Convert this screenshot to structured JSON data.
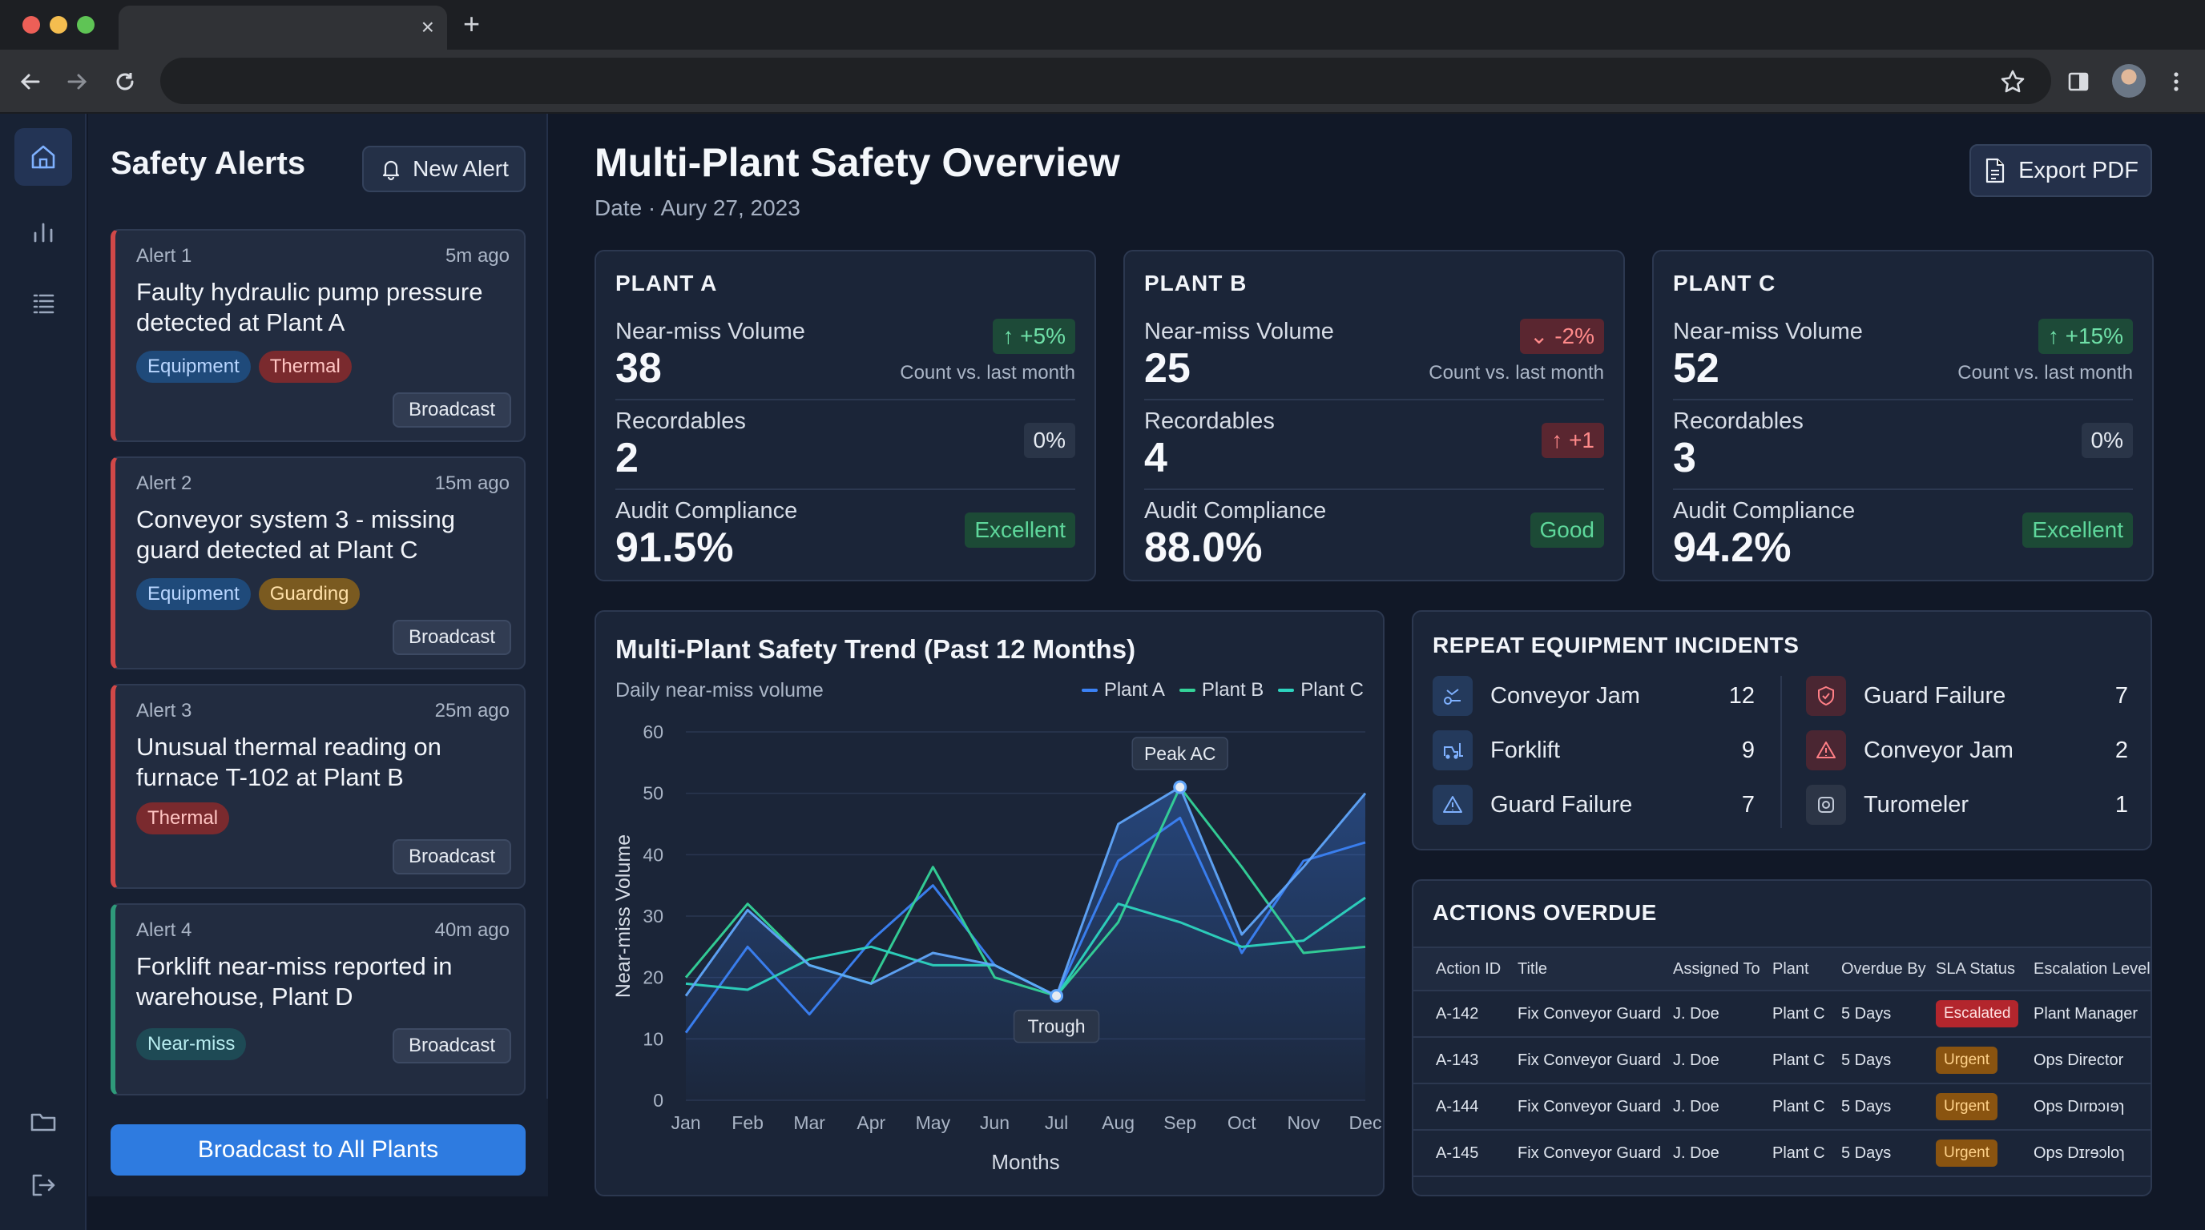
{
  "browser": {
    "tab_close": "×",
    "new_tab": "+"
  },
  "alerts_panel": {
    "title": "Safety Alerts",
    "new_alert_label": "New Alert",
    "broadcast_all_label": "Broadcast to All Plants",
    "alerts": [
      {
        "num": "Alert 1",
        "time": "5m ago",
        "text": "Faulty hydraulic pump pressure detected at Plant A",
        "tags": [
          "Equipment",
          "Thermal"
        ],
        "action": "Broadcast"
      },
      {
        "num": "Alert 2",
        "time": "15m ago",
        "text": "Conveyor system 3 - missing guard detected at Plant C",
        "tags": [
          "Equipment",
          "Guarding"
        ],
        "action": "Broadcast"
      },
      {
        "num": "Alert 3",
        "time": "25m ago",
        "text": "Unusual thermal reading on furnace T-102 at Plant B",
        "tags": [
          "Thermal"
        ],
        "action": "Broadcast"
      },
      {
        "num": "Alert 4",
        "time": "40m ago",
        "text": "Forklift near-miss reported in warehouse, Plant D",
        "tags": [
          "Near-miss"
        ],
        "action": "Broadcast"
      }
    ]
  },
  "header": {
    "title": "Multi-Plant Safety Overview",
    "date": "Date · Aury 27, 2023",
    "export_label": "Export PDF"
  },
  "plants": [
    {
      "name": "PLANT A",
      "near_miss_label": "Near-miss Volume",
      "near_miss": "38",
      "near_miss_delta": "+5%",
      "note": "Count vs. last month",
      "recordables_label": "Recordables",
      "recordables": "2",
      "recordables_delta": "0%",
      "audit_label": "Audit Compliance",
      "audit": "91.5%",
      "audit_status": "Excellent"
    },
    {
      "name": "PLANT B",
      "near_miss_label": "Near-miss Volume",
      "near_miss": "25",
      "near_miss_delta": "-2%",
      "note": "Count vs. last month",
      "recordables_label": "Recordables",
      "recordables": "4",
      "recordables_delta": "+1",
      "audit_label": "Audit Compliance",
      "audit": "88.0%",
      "audit_status": "Good"
    },
    {
      "name": "PLANT C",
      "near_miss_label": "Near-miss Volume",
      "near_miss": "52",
      "near_miss_delta": "+15%",
      "note": "Count vs. last month",
      "recordables_label": "Recordables",
      "recordables": "3",
      "recordables_delta": "0%",
      "audit_label": "Audit Compliance",
      "audit": "94.2%",
      "audit_status": "Excellent"
    }
  ],
  "chart_data": {
    "type": "line",
    "title": "Multi-Plant Safety Trend (Past 12 Months)",
    "subtitle": "Daily near-miss volume",
    "xlabel": "Months",
    "ylabel": "Near-miss Volume",
    "categories": [
      "Jan",
      "Feb",
      "Mar",
      "Apr",
      "May",
      "Jun",
      "Jul",
      "Aug",
      "Sep",
      "Oct",
      "Nov",
      "Dec"
    ],
    "ylim": [
      0,
      60
    ],
    "yticks": [
      0,
      10,
      20,
      30,
      40,
      50,
      60
    ],
    "grid": true,
    "legend_position": "top-right",
    "series": [
      {
        "name": "Plant A",
        "color": "#3b82f6",
        "values": [
          11,
          25,
          14,
          26,
          35,
          22,
          17,
          39,
          46,
          24,
          39,
          42
        ]
      },
      {
        "name": "Plant B",
        "color": "#34d399",
        "values": [
          20,
          32,
          22,
          19,
          38,
          20,
          17,
          29,
          51,
          38,
          24,
          25
        ]
      },
      {
        "name": "Plant C",
        "color": "#2dd4bf",
        "values": [
          19,
          18,
          23,
          25,
          22,
          22,
          17,
          32,
          29,
          25,
          26,
          33
        ]
      },
      {
        "name": "Peak",
        "color": "#60a5fa",
        "values": [
          17,
          31,
          22,
          19,
          24,
          22,
          17,
          45,
          51,
          27,
          38,
          50
        ]
      }
    ],
    "annotations": [
      {
        "label": "Peak AC",
        "x": "Sep",
        "y": 51
      },
      {
        "label": "Trough",
        "x": "Jul",
        "y": 17
      }
    ]
  },
  "repeat_incidents": {
    "title": "REPEAT EQUIPMENT INCIDENTS",
    "left": [
      {
        "label": "Conveyor Jam",
        "count": "12",
        "icon": "conveyor-icon"
      },
      {
        "label": "Forklift",
        "count": "9",
        "icon": "forklift-icon"
      },
      {
        "label": "Guard Failure",
        "count": "7",
        "icon": "warning-icon"
      }
    ],
    "right": [
      {
        "label": "Guard Failure",
        "count": "7",
        "icon": "shield-icon"
      },
      {
        "label": "Conveyor Jam",
        "count": "2",
        "icon": "warning-icon"
      },
      {
        "label": "Turomeler",
        "count": "1",
        "icon": "gauge-icon"
      }
    ]
  },
  "actions_overdue": {
    "title": "ACTIONS OVERDUE",
    "headers": [
      "Action ID",
      "Title",
      "Assigned To",
      "Plant",
      "Overdue By",
      "SLA Status",
      "Escalation Level"
    ],
    "rows": [
      {
        "id": "A-142",
        "title": "Fix Conveyor Guard",
        "assigned": "J. Doe",
        "plant": "Plant C",
        "overdue": "5 Days",
        "sla": "Escalated",
        "level": "Plant Manager"
      },
      {
        "id": "A-143",
        "title": "Fix Conveyor Guard",
        "assigned": "J. Doe",
        "plant": "Plant C",
        "overdue": "5 Days",
        "sla": "Urgent",
        "level": "Ops Director"
      },
      {
        "id": "A-144",
        "title": "Fix Conveyor Guard",
        "assigned": "J. Doe",
        "plant": "Plant C",
        "overdue": "5 Days",
        "sla": "Urgent",
        "level": "Ops Dırɒɔıɘɿ"
      },
      {
        "id": "A-145",
        "title": "Fix Conveyor Guard",
        "assigned": "J. Doe",
        "plant": "Plant C",
        "overdue": "5 Days",
        "sla": "Urgent",
        "level": "Ops Dɪrɘɔloɿ"
      }
    ]
  }
}
